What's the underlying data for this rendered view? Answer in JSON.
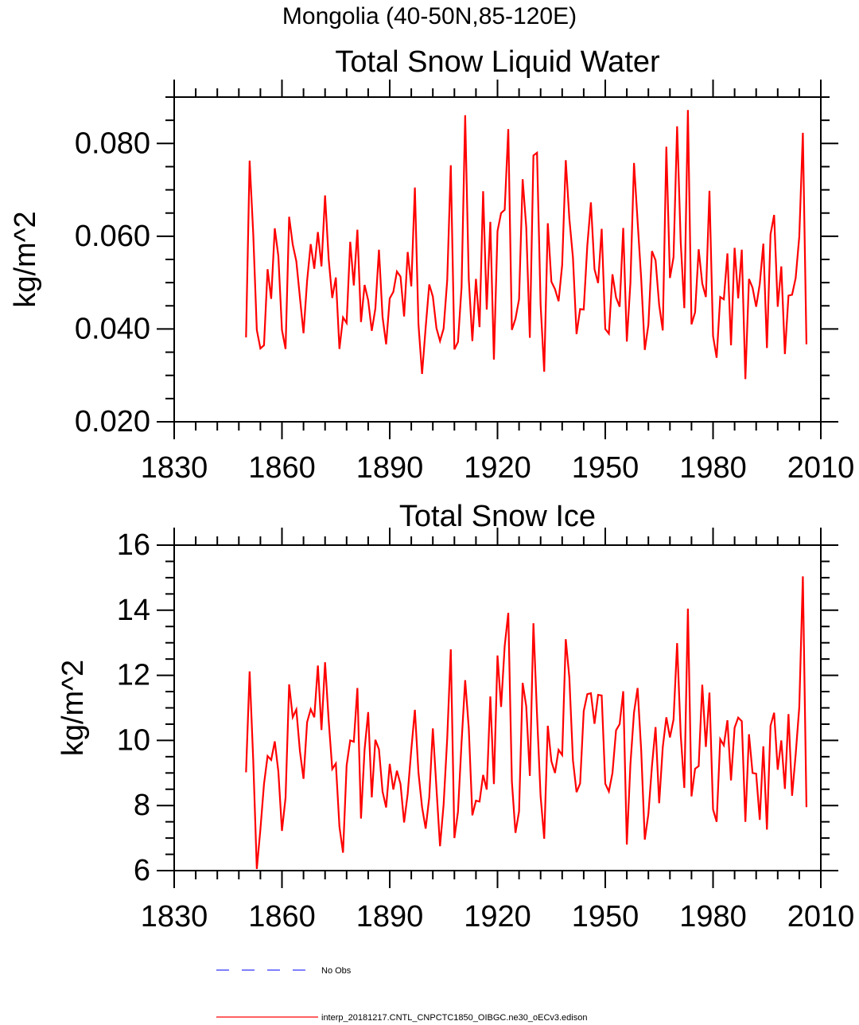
{
  "figure": {
    "suptitle": "Mongolia (40-50N,85-120E)"
  },
  "legend": [
    {
      "label": "No Obs",
      "color": "#3333ff",
      "style": "dashed"
    },
    {
      "label": "interp_20181217.CNTL_CNPCTC1850_OIBGC.ne30_oECv3.edison",
      "color": "#ff0000",
      "style": "solid"
    }
  ],
  "chart_data": [
    {
      "type": "line",
      "title": "Total Snow Liquid Water",
      "xlabel": "",
      "ylabel": "kg/m^2",
      "xlim": [
        1830,
        2010
      ],
      "ylim": [
        0.02,
        0.09
      ],
      "xticks": [
        1830,
        1860,
        1890,
        1920,
        1950,
        1980,
        2010
      ],
      "xtick_labels": [
        "1830",
        "1860",
        "1890",
        "1920",
        "1950",
        "1980",
        "2010"
      ],
      "yticks": [
        0.02,
        0.04,
        0.06,
        0.08
      ],
      "ytick_labels": [
        "0.020",
        "0.040",
        "0.060",
        "0.080"
      ],
      "grid": false,
      "series": [
        {
          "name": "interp_20181217.CNTL_CNPCTC1850_OIBGC.ne30_oECv3.edison",
          "color": "#ff0000",
          "x_start": 1850,
          "x_step": 1,
          "values": [
            0.0382,
            0.0763,
            0.0606,
            0.0398,
            0.0358,
            0.0365,
            0.0529,
            0.0465,
            0.0617,
            0.0557,
            0.0398,
            0.0357,
            0.0642,
            0.0582,
            0.0546,
            0.0468,
            0.0391,
            0.0504,
            0.0583,
            0.053,
            0.0609,
            0.0535,
            0.0688,
            0.0551,
            0.0467,
            0.0511,
            0.0357,
            0.0425,
            0.0413,
            0.0588,
            0.0494,
            0.0614,
            0.0415,
            0.0495,
            0.0462,
            0.0396,
            0.0444,
            0.0571,
            0.0426,
            0.0367,
            0.0466,
            0.048,
            0.0524,
            0.0513,
            0.0427,
            0.0566,
            0.0492,
            0.0705,
            0.041,
            0.0303,
            0.0403,
            0.0496,
            0.047,
            0.0402,
            0.0374,
            0.0401,
            0.0505,
            0.0753,
            0.0356,
            0.0372,
            0.0491,
            0.0861,
            0.0508,
            0.0374,
            0.0508,
            0.0404,
            0.0697,
            0.0442,
            0.0631,
            0.0334,
            0.0611,
            0.065,
            0.0657,
            0.0831,
            0.0398,
            0.0422,
            0.0464,
            0.0723,
            0.062,
            0.0381,
            0.0774,
            0.078,
            0.0452,
            0.0308,
            0.0628,
            0.0502,
            0.0486,
            0.046,
            0.0538,
            0.0764,
            0.0638,
            0.0554,
            0.0389,
            0.0443,
            0.0442,
            0.058,
            0.0673,
            0.0529,
            0.0499,
            0.0616,
            0.04,
            0.039,
            0.0518,
            0.0468,
            0.0448,
            0.0618,
            0.0373,
            0.05,
            0.0758,
            0.0632,
            0.0508,
            0.0355,
            0.0409,
            0.0568,
            0.0548,
            0.0452,
            0.0397,
            0.0793,
            0.051,
            0.0555,
            0.0837,
            0.0587,
            0.0445,
            0.0872,
            0.041,
            0.0436,
            0.0572,
            0.0498,
            0.0469,
            0.0698,
            0.0385,
            0.0338,
            0.0469,
            0.0464,
            0.0563,
            0.0365,
            0.0575,
            0.0466,
            0.0571,
            0.0292,
            0.0508,
            0.0489,
            0.0448,
            0.0497,
            0.0584,
            0.0359,
            0.0604,
            0.0646,
            0.0448,
            0.0535,
            0.0346,
            0.0472,
            0.0474,
            0.051,
            0.0599,
            0.0823,
            0.0367
          ]
        }
      ]
    },
    {
      "type": "line",
      "title": "Total Snow Ice",
      "xlabel": "",
      "ylabel": "kg/m^2",
      "xlim": [
        1830,
        2010
      ],
      "ylim": [
        6,
        16
      ],
      "xticks": [
        1830,
        1860,
        1890,
        1920,
        1950,
        1980,
        2010
      ],
      "xtick_labels": [
        "1830",
        "1860",
        "1890",
        "1920",
        "1950",
        "1980",
        "2010"
      ],
      "yticks": [
        6,
        8,
        10,
        12,
        14,
        16
      ],
      "ytick_labels": [
        "6",
        "8",
        "10",
        "12",
        "14",
        "16"
      ],
      "grid": false,
      "series": [
        {
          "name": "interp_20181217.CNTL_CNPCTC1850_OIBGC.ne30_oECv3.edison",
          "color": "#ff0000",
          "x_start": 1850,
          "x_step": 1,
          "values": [
            9.02,
            12.12,
            9.4,
            6.05,
            7.27,
            8.66,
            9.52,
            9.4,
            9.97,
            9.04,
            7.22,
            8.24,
            11.72,
            10.71,
            10.95,
            9.67,
            8.82,
            10.56,
            10.96,
            10.71,
            12.3,
            10.32,
            12.4,
            10.62,
            9.12,
            9.29,
            7.35,
            6.55,
            9.23,
            10.0,
            9.96,
            11.61,
            7.6,
            9.72,
            10.87,
            8.25,
            10.02,
            9.73,
            8.43,
            7.94,
            9.28,
            8.49,
            9.07,
            8.66,
            7.48,
            8.36,
            9.71,
            10.94,
            9.01,
            7.95,
            7.29,
            8.25,
            10.37,
            8.54,
            6.75,
            8.03,
            10.06,
            12.8,
            7.0,
            7.81,
            9.95,
            11.85,
            10.38,
            7.7,
            8.15,
            8.12,
            8.94,
            8.49,
            11.35,
            8.66,
            12.61,
            11.03,
            12.9,
            13.92,
            8.74,
            7.16,
            7.82,
            11.77,
            11.05,
            8.91,
            13.6,
            10.8,
            8.28,
            6.98,
            10.45,
            9.36,
            9.0,
            9.71,
            9.55,
            13.11,
            11.93,
            9.39,
            8.41,
            8.68,
            10.9,
            11.42,
            11.45,
            10.51,
            11.4,
            11.38,
            8.67,
            8.43,
            9.0,
            10.31,
            10.5,
            11.51,
            6.8,
            9.27,
            10.86,
            11.61,
            9.69,
            6.95,
            7.74,
            9.22,
            10.41,
            8.07,
            9.79,
            10.71,
            10.09,
            10.64,
            12.99,
            10.17,
            8.54,
            14.05,
            8.28,
            9.13,
            9.21,
            11.71,
            9.8,
            11.47,
            7.88,
            7.5,
            10.04,
            9.85,
            10.62,
            8.77,
            10.39,
            10.7,
            10.59,
            7.5,
            10.19,
            9.0,
            8.98,
            7.56,
            9.82,
            7.26,
            10.45,
            10.85,
            9.1,
            10.0,
            8.51,
            10.81,
            8.3,
            9.57,
            11.02,
            15.04,
            7.95
          ]
        }
      ]
    }
  ]
}
